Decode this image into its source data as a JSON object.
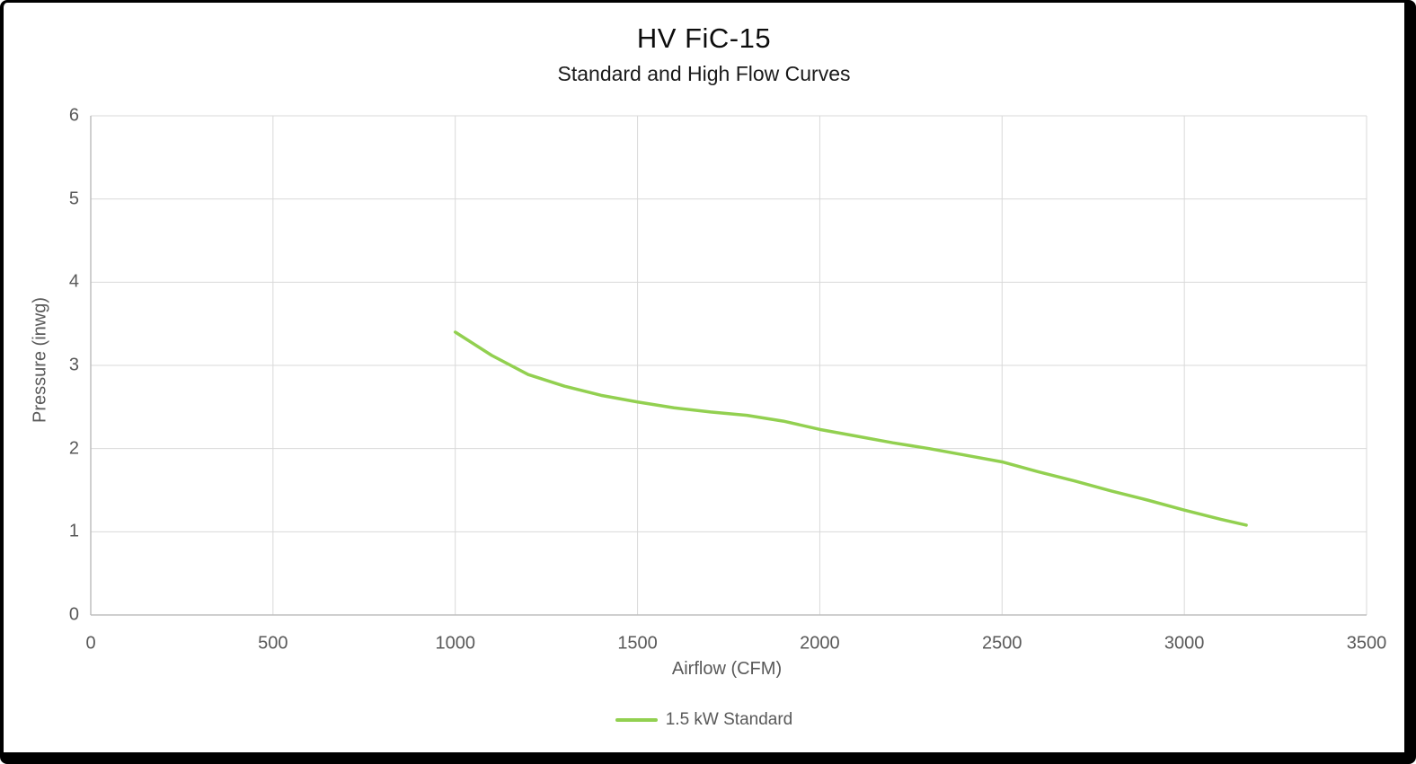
{
  "chart": {
    "title": "HV FiC-15",
    "subtitle": "Standard and High Flow Curves",
    "x_axis_title": "Airflow (CFM)",
    "y_axis_title": "Pressure (inwg)",
    "legend": [
      {
        "label": "1.5 kW Standard",
        "color": "#92D050"
      }
    ]
  },
  "chart_data": {
    "type": "line",
    "title": "HV FiC-15",
    "subtitle": "Standard and High Flow Curves",
    "xlabel": "Airflow (CFM)",
    "ylabel": "Pressure (inwg)",
    "xlim": [
      0,
      3500
    ],
    "ylim": [
      0,
      6
    ],
    "xticks": [
      0,
      500,
      1000,
      1500,
      2000,
      2500,
      3000,
      3500
    ],
    "yticks": [
      0,
      1,
      2,
      3,
      4,
      5,
      6
    ],
    "grid": true,
    "legend_position": "bottom",
    "colors": {
      "gridline": "#d9d9d9",
      "axis_line": "#bfbfbf",
      "tick_text": "#595959",
      "series_green": "#92D050"
    },
    "series": [
      {
        "name": "1.5 kW Standard",
        "color": "#92D050",
        "x": [
          1000,
          1100,
          1200,
          1300,
          1400,
          1500,
          1600,
          1700,
          1800,
          1900,
          2000,
          2100,
          2200,
          2300,
          2400,
          2500,
          2600,
          2700,
          2800,
          2900,
          3000,
          3100,
          3170
        ],
        "y": [
          3.4,
          3.12,
          2.89,
          2.75,
          2.64,
          2.56,
          2.49,
          2.44,
          2.4,
          2.33,
          2.23,
          2.15,
          2.07,
          2.0,
          1.92,
          1.84,
          1.72,
          1.61,
          1.49,
          1.38,
          1.26,
          1.15,
          1.08
        ]
      }
    ]
  }
}
